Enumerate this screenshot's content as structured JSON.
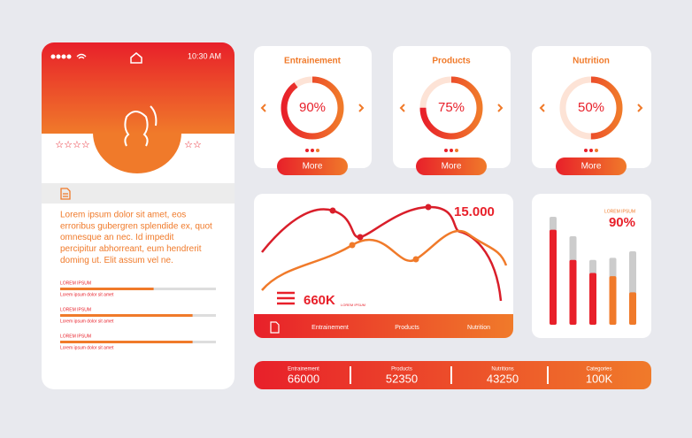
{
  "phone": {
    "status_time": "10:30 AM",
    "paragraph": [
      "Lorem ipsum dolor sit amet, eos",
      "erroribus gubergren splendide ex, quot",
      "omnesque an nec. Id impedit",
      "percipitur abhorreant, eum hendrerit",
      "doming ut. Elit assum vel ne."
    ],
    "xlim": [
      0,
      100
    ],
    "bars": [
      {
        "label": "LOREM IPSUM",
        "value": 60,
        "caption": "Lorem ipsum dolor sit amet"
      },
      {
        "label": "LOREM IPSUM",
        "value": 85,
        "caption": "Lorem ipsum dolor sit amet"
      },
      {
        "label": "LOREM IPSUM",
        "value": 85,
        "caption": "Lorem ipsum dolor sit amet"
      }
    ]
  },
  "donuts": [
    {
      "title": "Entrainement",
      "value": 90,
      "value_label": "90%",
      "button": "More"
    },
    {
      "title": "Products",
      "value": 75,
      "value_label": "75%",
      "button": "More"
    },
    {
      "title": "Nutrition",
      "value": 50,
      "value_label": "50%",
      "button": "More"
    }
  ],
  "line_card": {
    "value": "15.000",
    "total": "660K",
    "total_caption": "LOREM IPSUM",
    "tabs": [
      "Entrainement",
      "Products",
      "Nutrition"
    ]
  },
  "bar_card": {
    "caption": "LOREM IPSUM",
    "value_label": "90%",
    "ylim": [
      0,
      100
    ],
    "tracks": [
      100,
      82,
      60,
      62,
      68
    ],
    "values": [
      88,
      60,
      48,
      45,
      30
    ],
    "colors": [
      "#e8202a",
      "#e8202a",
      "#e8202a",
      "#f07a2a",
      "#f07a2a"
    ]
  },
  "stats": [
    {
      "label": "Entrainement",
      "value": 66000
    },
    {
      "label": "Products",
      "value": 52350
    },
    {
      "label": "Nutritions",
      "value": 43250
    },
    {
      "label": "Categories",
      "value": "100K"
    }
  ]
}
